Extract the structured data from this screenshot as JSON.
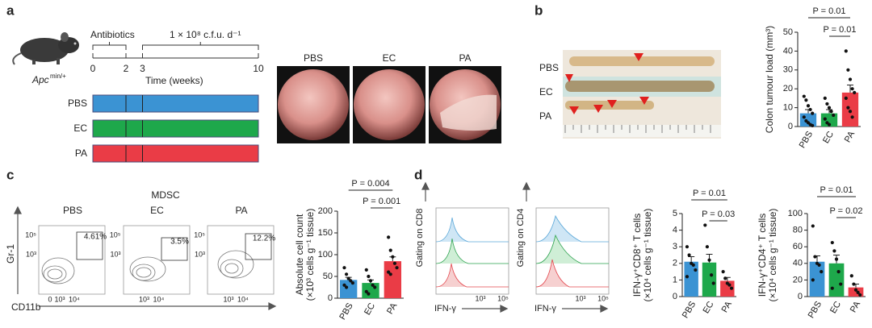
{
  "figure": {
    "a": {
      "letter": "a",
      "strain": "Apc",
      "genotype": "min/+",
      "antibiotics": "Antibiotics",
      "dose": "1 × 10⁸ c.f.u. d⁻¹",
      "time_label": "Time (weeks)",
      "timeline_lim": [
        0,
        10
      ],
      "timeline_ticks": [
        0,
        2,
        3,
        10
      ],
      "groups": [
        {
          "name": "PBS",
          "color": "#3b93d3"
        },
        {
          "name": "EC",
          "color": "#1ea84b"
        },
        {
          "name": "PA",
          "color": "#ea3c46"
        }
      ],
      "endoscopy_labels": [
        "PBS",
        "EC",
        "PA"
      ]
    },
    "b": {
      "letter": "b",
      "colon_labels": [
        "PBS",
        "EC",
        "PA"
      ]
    },
    "c": {
      "letter": "c",
      "title": "MDSC",
      "labels": [
        "PBS",
        "EC",
        "PA"
      ],
      "gates": [
        "4.61%",
        "3.5%",
        "12.2%"
      ],
      "y_axis": "Gr-1",
      "x_axis": "CD11b",
      "y_ticks": [
        "10⁵",
        "10³"
      ],
      "x_ticks": [
        "0",
        "10³",
        "10⁴"
      ]
    },
    "d": {
      "letter": "d",
      "gating": [
        "Gating on CD8",
        "Gating on CD4"
      ],
      "x_axis": "IFN-γ",
      "x_ticks": [
        "10³",
        "10⁵"
      ]
    }
  },
  "chart_data": [
    {
      "type": "bar",
      "ylabel": [
        "Colon tumour load (mm³)"
      ],
      "categories": [
        "PBS",
        "EC",
        "PA"
      ],
      "values": [
        7,
        7,
        18
      ],
      "errors": [
        2,
        2,
        4
      ],
      "points": [
        [
          16,
          14,
          11,
          9,
          7,
          5,
          3,
          2,
          1,
          0.5
        ],
        [
          15,
          12,
          10,
          8,
          6,
          4,
          2,
          1
        ],
        [
          40,
          30,
          25,
          20,
          18,
          15,
          10,
          8,
          5
        ]
      ],
      "colors": [
        "#3b93d3",
        "#1ea84b",
        "#ea3c46"
      ],
      "ylim": [
        0,
        50
      ],
      "yticks": [
        0,
        10,
        20,
        30,
        40,
        50
      ],
      "annotations": [
        "P = 0.01",
        "P = 0.01"
      ]
    },
    {
      "type": "bar",
      "ylabel": [
        "Absolute cell count",
        "(×10³ cells g⁻¹ tissue)"
      ],
      "categories": [
        "PBS",
        "EC",
        "PA"
      ],
      "values": [
        42,
        35,
        85
      ],
      "errors": [
        6,
        7,
        10
      ],
      "points": [
        [
          70,
          55,
          45,
          40,
          35,
          30,
          25
        ],
        [
          65,
          50,
          40,
          30,
          25,
          15,
          10
        ],
        [
          140,
          110,
          95,
          80,
          70,
          60,
          55
        ]
      ],
      "colors": [
        "#3b93d3",
        "#1ea84b",
        "#ea3c46"
      ],
      "ylim": [
        0,
        200
      ],
      "yticks": [
        0,
        50,
        100,
        150,
        200
      ],
      "annotations": [
        "P = 0.004",
        "P = 0.001"
      ]
    },
    {
      "type": "bar",
      "ylabel": [
        "IFN-γ⁺CD8⁺ T cells",
        "(×10⁴ cells g⁻¹ tissue)"
      ],
      "categories": [
        "PBS",
        "EC",
        "PA"
      ],
      "values": [
        2.1,
        2.05,
        0.95
      ],
      "errors": [
        0.3,
        0.5,
        0.2
      ],
      "points": [
        [
          3.0,
          2.5,
          2.0,
          1.9,
          1.6,
          1.2
        ],
        [
          4.3,
          3.0,
          2.2,
          1.3,
          0.8
        ],
        [
          1.5,
          1.1,
          0.8,
          0.7,
          0.5
        ]
      ],
      "colors": [
        "#3b93d3",
        "#1ea84b",
        "#ea3c46"
      ],
      "ylim": [
        0,
        5
      ],
      "yticks": [
        0,
        1,
        2,
        3,
        4,
        5
      ],
      "annotations": [
        "P = 0.01",
        "P = 0.03"
      ]
    },
    {
      "type": "bar",
      "ylabel": [
        "IFN-γ⁺CD4⁺ T cells",
        "(×10⁴ cells g⁻¹ tissue)"
      ],
      "categories": [
        "PBS",
        "EC",
        "PA"
      ],
      "values": [
        42,
        40,
        11
      ],
      "errors": [
        7,
        10,
        4
      ],
      "points": [
        [
          85,
          48,
          40,
          38,
          30,
          20
        ],
        [
          65,
          55,
          45,
          30,
          15,
          10
        ],
        [
          25,
          15,
          8,
          5,
          2
        ]
      ],
      "colors": [
        "#3b93d3",
        "#1ea84b",
        "#ea3c46"
      ],
      "ylim": [
        0,
        100
      ],
      "yticks": [
        0,
        20,
        40,
        60,
        80,
        100
      ],
      "annotations": [
        "P = 0.01",
        "P = 0.02"
      ]
    }
  ]
}
